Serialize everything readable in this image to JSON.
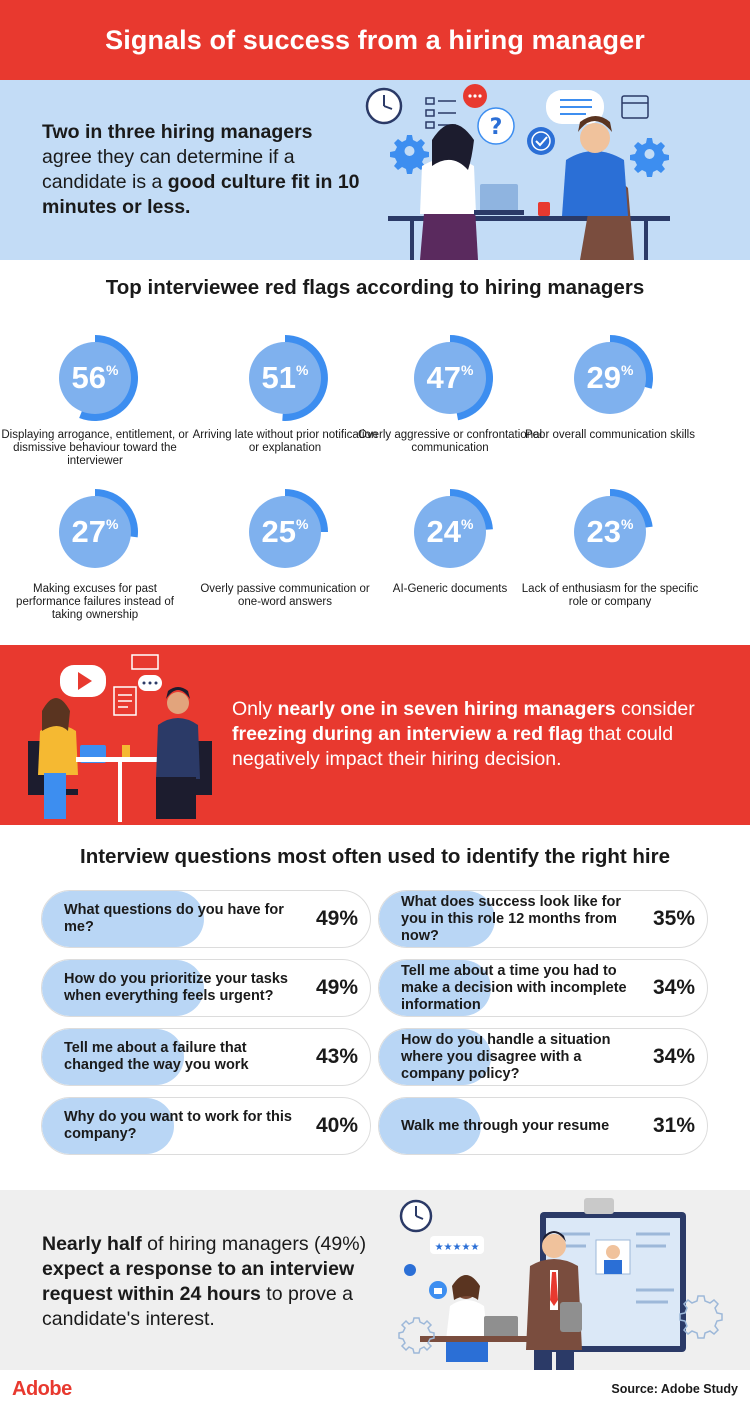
{
  "header": {
    "title": "Signals of success from a hiring manager"
  },
  "culture_fit": {
    "parts": [
      {
        "text": "Two in three hiring managers",
        "bold": true
      },
      {
        "text": " agree they can determine if a candidate is a ",
        "bold": false
      },
      {
        "text": "good culture fit in 10 minutes or less.",
        "bold": true
      }
    ]
  },
  "chart_data": [
    {
      "type": "donut",
      "title": "Top interviewee red flags according to hiring managers",
      "unit": "%",
      "categories": [
        "Displaying arrogance, entitlement, or dismissive behaviour toward the interviewer",
        "Arriving late without prior notification or explanation",
        "Overly aggressive or confrontational communication",
        "Poor overall communication skills",
        "Making excuses for past performance failures instead of taking ownership",
        "Overly passive communication or one-word answers",
        "AI-Generic documents",
        "Lack of enthusiasm for the specific role or company"
      ],
      "values": [
        56,
        51,
        47,
        29,
        27,
        25,
        24,
        23
      ]
    },
    {
      "type": "bar",
      "title": "Interview questions most often used to identify the right hire",
      "unit": "%",
      "categories": [
        "What questions do you have for me?",
        "How do you prioritize your tasks when everything feels urgent?",
        "Tell me about a failure that changed the way you work",
        "Why do you want to work for this company?",
        "What does success look like for you in this role 12 months from now?",
        "Tell me about a time you had to make a decision with incomplete information",
        "How do you handle a situation where you disagree with a company policy?",
        "Walk me through your resume"
      ],
      "values": [
        49,
        49,
        43,
        40,
        35,
        34,
        34,
        31
      ]
    }
  ],
  "freeze": {
    "parts": [
      {
        "text": "Only ",
        "bold": false
      },
      {
        "text": "nearly one in seven hiring managers",
        "bold": true
      },
      {
        "text": " consider ",
        "bold": false
      },
      {
        "text": "freezing during an interview a red flag",
        "bold": true
      },
      {
        "text": " that could negatively impact their hiring decision.",
        "bold": false
      }
    ]
  },
  "response": {
    "parts": [
      {
        "text": "Nearly half",
        "bold": true
      },
      {
        "text": " of hiring managers (49%) ",
        "bold": false
      },
      {
        "text": "expect a response to an interview request within 24 hours",
        "bold": true
      },
      {
        "text": " to prove a candidate's interest.",
        "bold": false
      }
    ]
  },
  "footer": {
    "logo": "Adobe",
    "source": "Source: Adobe Study"
  },
  "colors": {
    "brand_red": "#e8392f",
    "ring_blue": "#3d8ef0",
    "disc_blue": "#7fb1ee",
    "bar_blue": "#b9d6f5",
    "panel_blue": "#c3dcf6"
  },
  "icons": [
    "clock-icon",
    "question-icon",
    "chat-bubble-icon",
    "checkmark-icon",
    "gear-icon",
    "calendar-icon",
    "video-play-icon",
    "star-rating-icon",
    "thumbs-up-icon"
  ]
}
